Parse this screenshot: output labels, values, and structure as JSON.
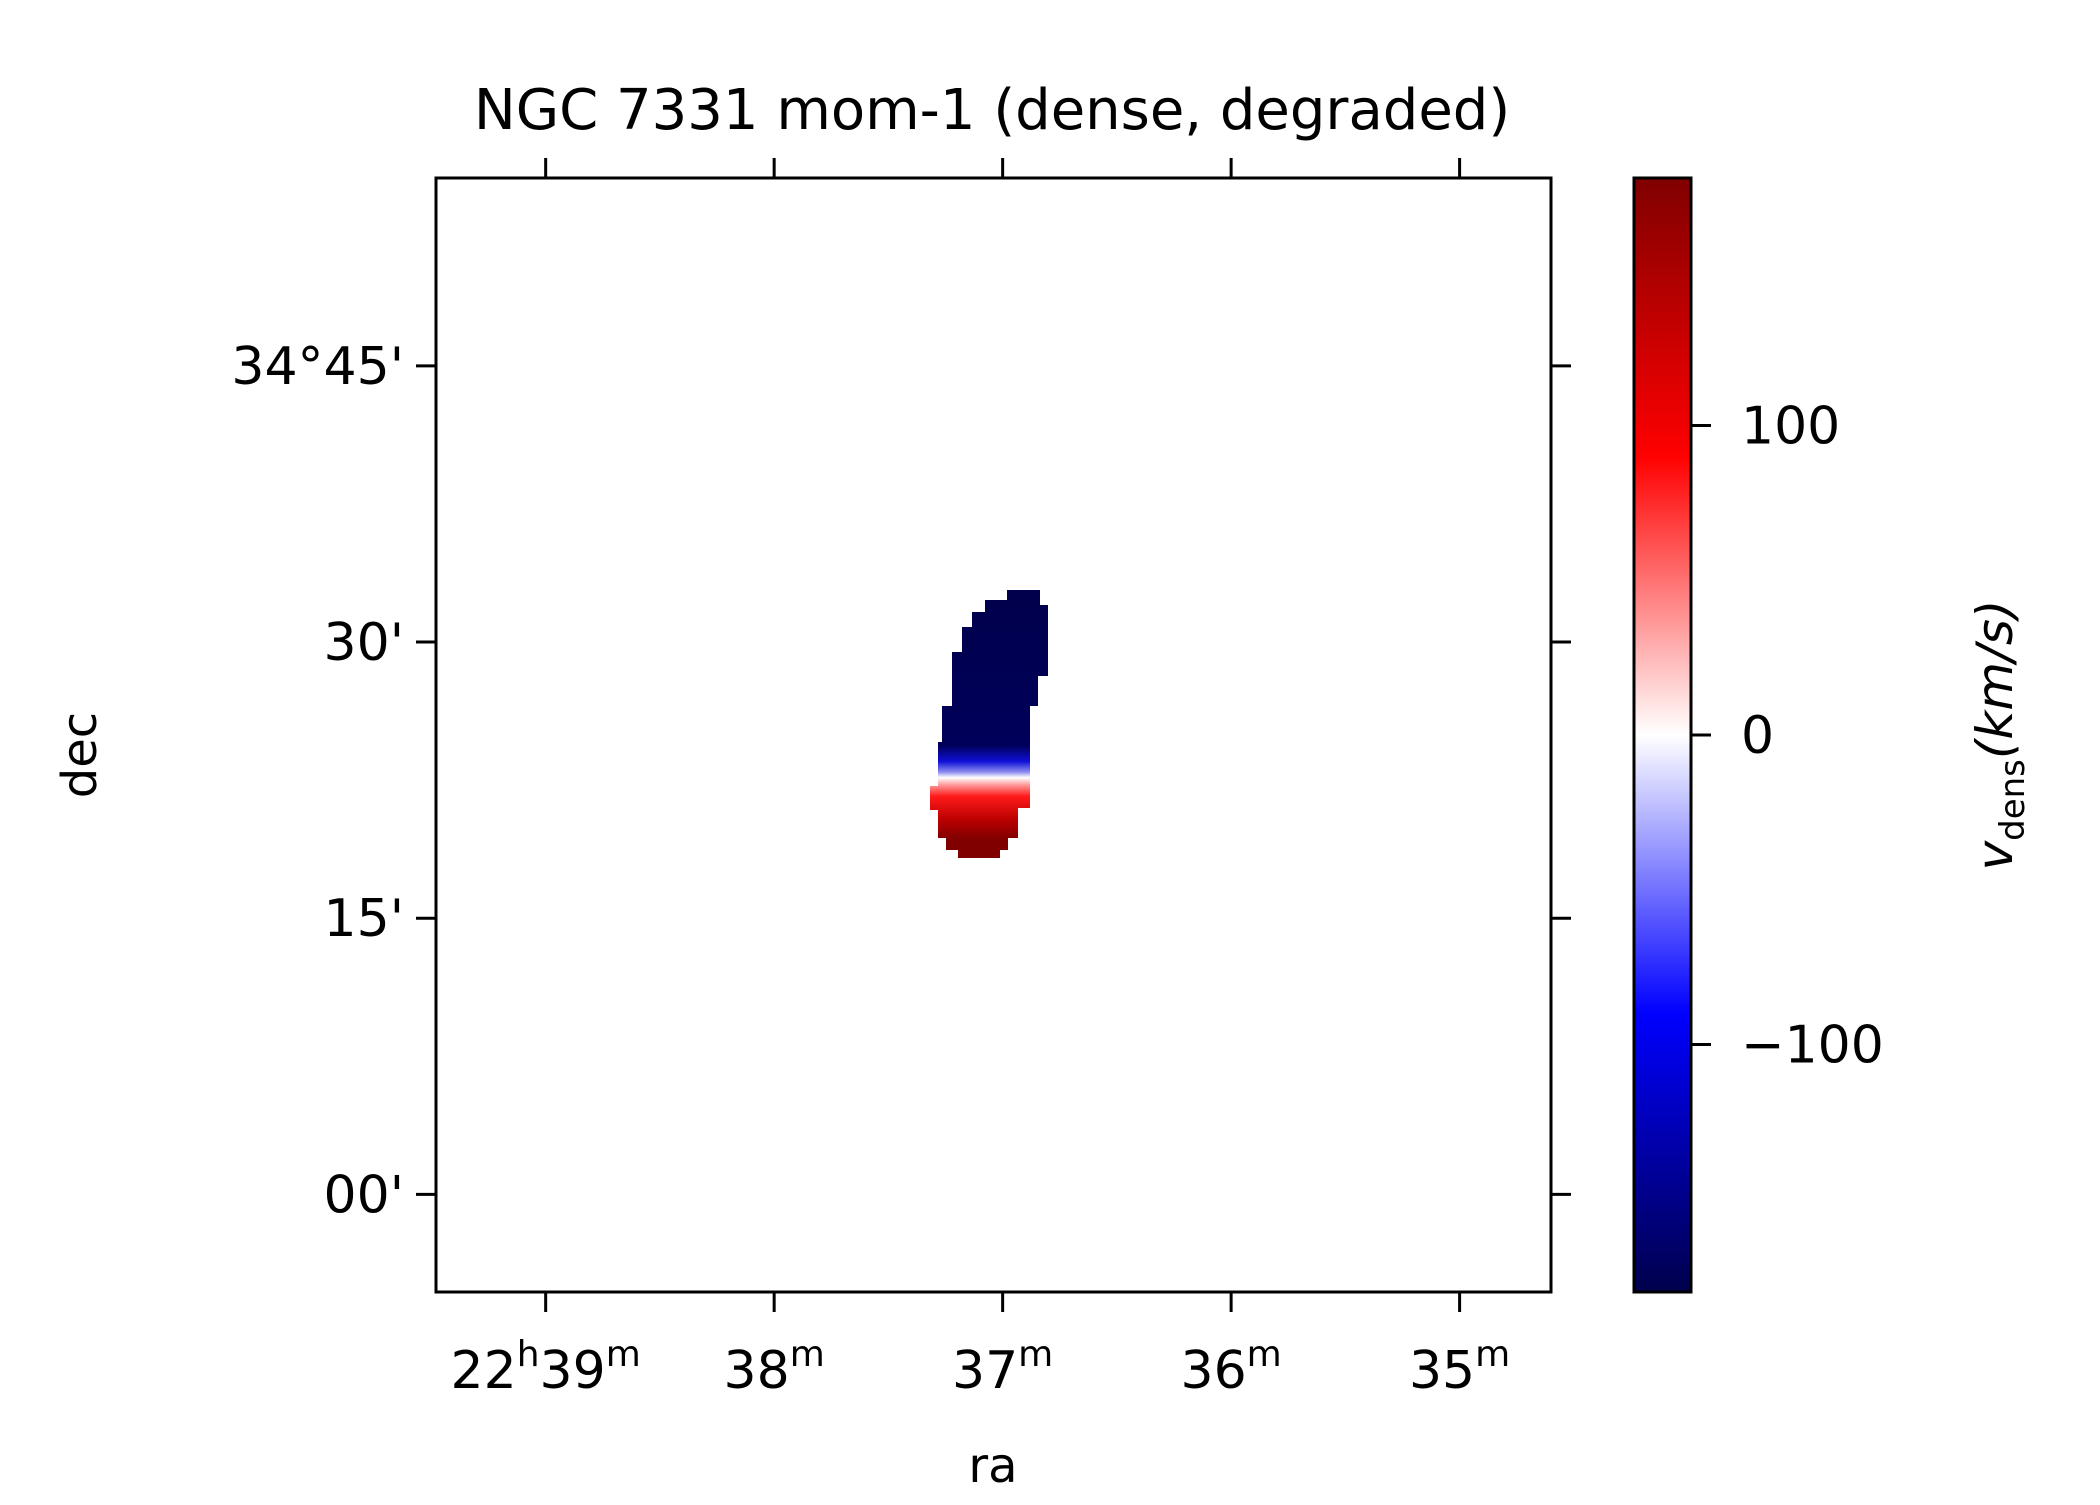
{
  "chart_data": {
    "type": "heatmap",
    "title": "NGC 7331 mom-1 (dense, degraded)",
    "xlabel": "ra",
    "ylabel": "dec",
    "x_ticks": [
      {
        "h": "22",
        "m": "39"
      },
      {
        "h": "",
        "m": "38"
      },
      {
        "h": "",
        "m": "37"
      },
      {
        "h": "",
        "m": "36"
      },
      {
        "h": "",
        "m": "35"
      }
    ],
    "x_tick_minutes": [
      39,
      38,
      37,
      36,
      35
    ],
    "xlim_minutes": [
      39.48,
      34.6
    ],
    "y_ticks": [
      "34°45'",
      "30'",
      "15'",
      "00'"
    ],
    "y_tick_arcmin": [
      45,
      30,
      15,
      0
    ],
    "ylim_arcmin": [
      -5.3,
      55.2
    ],
    "colorbar": {
      "label_main": "v",
      "label_sub": "dens",
      "label_unit": "(km/s)",
      "range": [
        -180,
        180
      ],
      "ticks": [
        100,
        0,
        -100
      ],
      "tick_labels": [
        "100",
        "0",
        "−100"
      ],
      "colormap": "seismic",
      "colors": [
        "#00004c",
        "#0000ff",
        "#ffffff",
        "#ff0000",
        "#800000"
      ]
    },
    "source": {
      "ra_center_min": 37.05,
      "dec_center_arcmin": 25.3,
      "north_velocity_kms": -180,
      "south_velocity_kms": 180,
      "approx_extent": "ra 37.33m to 36.82m, dec 18' to 33'"
    }
  }
}
